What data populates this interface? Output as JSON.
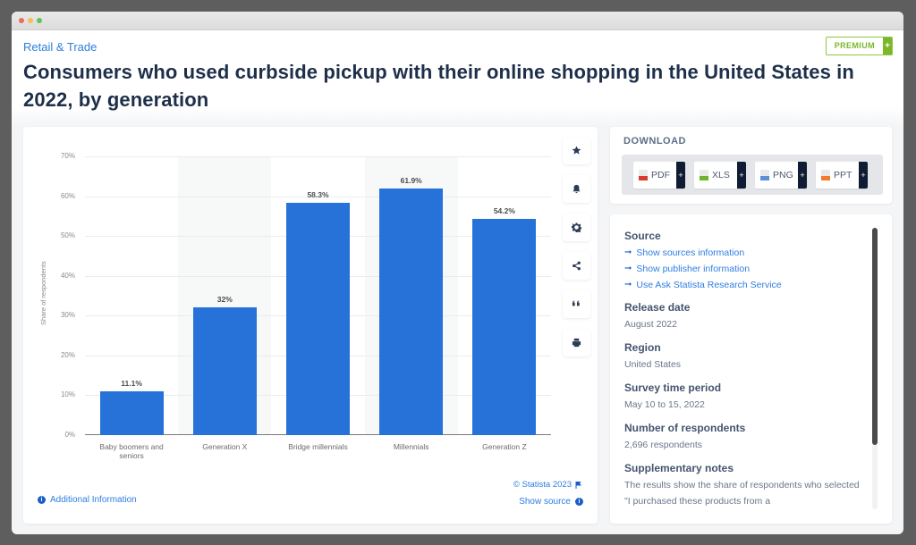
{
  "window": {
    "traffic_lights": [
      "#ed6a5e",
      "#f5bf4f",
      "#61c554"
    ]
  },
  "header": {
    "breadcrumb": "Retail & Trade",
    "title": "Consumers who used curbside pickup with their online shopping in the United States in 2022, by generation",
    "premium_label": "PREMIUM",
    "premium_plus": "+"
  },
  "chart_data": {
    "type": "bar",
    "title": "Consumers who used curbside pickup with their online shopping in the United States in 2022, by generation",
    "categories": [
      "Baby boomers and seniors",
      "Generation X",
      "Bridge millennials",
      "Millennials",
      "Generation Z"
    ],
    "values": [
      11.1,
      32,
      58.3,
      61.9,
      54.2
    ],
    "value_labels": [
      "11.1%",
      "32%",
      "58.3%",
      "61.9%",
      "54.2%"
    ],
    "xlabel": "",
    "ylabel": "Share of respondents",
    "ylim": [
      0,
      70
    ],
    "yticks": [
      "0%",
      "10%",
      "20%",
      "30%",
      "40%",
      "50%",
      "60%",
      "70%"
    ],
    "grid": true,
    "legend": null,
    "bar_color": "#2672d9"
  },
  "chart_footer": {
    "additional_info": "Additional Information",
    "copyright": "© Statista 2023",
    "show_source": "Show source"
  },
  "tools": [
    {
      "icon": "star-icon",
      "label": "Favorite"
    },
    {
      "icon": "bell-icon",
      "label": "Notification"
    },
    {
      "icon": "gear-icon",
      "label": "Settings"
    },
    {
      "icon": "share-icon",
      "label": "Share"
    },
    {
      "icon": "quote-icon",
      "label": "Cite"
    },
    {
      "icon": "print-icon",
      "label": "Print"
    }
  ],
  "download": {
    "title": "DOWNLOAD",
    "buttons": [
      {
        "label": "PDF",
        "color": "#d93a2b"
      },
      {
        "label": "XLS",
        "color": "#6bb52e"
      },
      {
        "label": "PNG",
        "color": "#5a8fd6"
      },
      {
        "label": "PPT",
        "color": "#f07b2a"
      }
    ],
    "plus": "+"
  },
  "info": {
    "source_heading": "Source",
    "source_links": [
      "Show sources information",
      "Show publisher information",
      "Use Ask Statista Research Service"
    ],
    "release_heading": "Release date",
    "release_value": "August 2022",
    "region_heading": "Region",
    "region_value": "United States",
    "survey_heading": "Survey time period",
    "survey_value": "May 10 to 15, 2022",
    "respondents_heading": "Number of respondents",
    "respondents_value": "2,696 respondents",
    "notes_heading": "Supplementary notes",
    "notes_value": "The results show the share of respondents who selected \"I purchased these products from a"
  }
}
